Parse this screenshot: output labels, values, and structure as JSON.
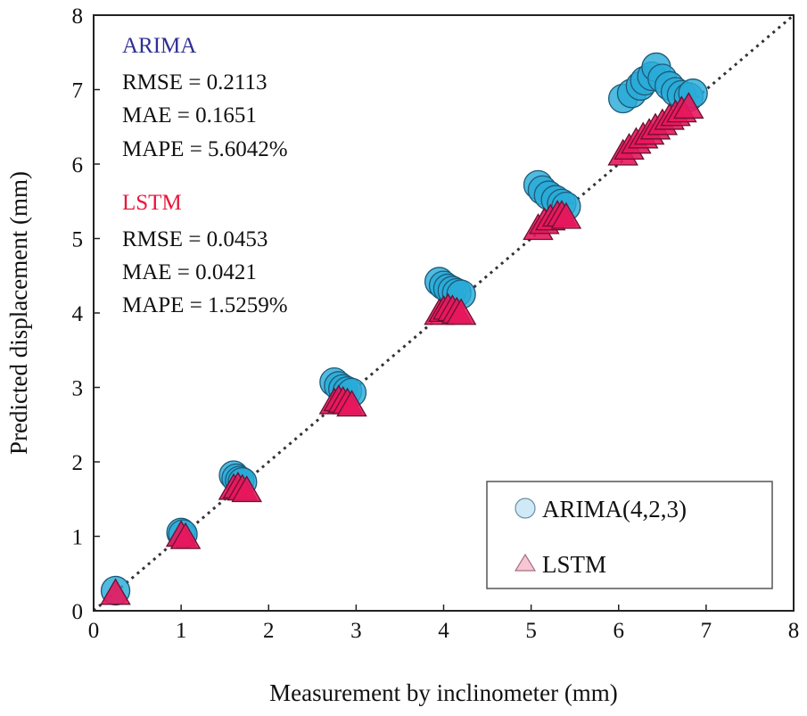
{
  "chart_data": {
    "type": "scatter",
    "xlabel": "Measurement by inclinometer (mm)",
    "ylabel": "Predicted displacement (mm)",
    "xlim": [
      0,
      8
    ],
    "ylim": [
      0,
      8
    ],
    "xticks": [
      0,
      1,
      2,
      3,
      4,
      5,
      6,
      7,
      8
    ],
    "yticks": [
      0,
      1,
      2,
      3,
      4,
      5,
      6,
      7,
      8
    ],
    "reference_line": "y = x",
    "legend_position": "bottom-right",
    "series": [
      {
        "name": "ARIMA(4,2,3)",
        "color": "#29ABD8",
        "marker": "circle",
        "points": [
          [
            0.25,
            0.27
          ],
          [
            1.0,
            1.05
          ],
          [
            1.02,
            1.03
          ],
          [
            1.6,
            1.82
          ],
          [
            1.63,
            1.78
          ],
          [
            1.67,
            1.75
          ],
          [
            1.7,
            1.73
          ],
          [
            2.75,
            3.07
          ],
          [
            2.8,
            3.02
          ],
          [
            2.85,
            2.98
          ],
          [
            2.9,
            2.95
          ],
          [
            2.95,
            2.93
          ],
          [
            3.95,
            4.42
          ],
          [
            4.0,
            4.37
          ],
          [
            4.05,
            4.33
          ],
          [
            4.1,
            4.3
          ],
          [
            4.15,
            4.27
          ],
          [
            4.2,
            4.25
          ],
          [
            5.08,
            5.72
          ],
          [
            5.13,
            5.65
          ],
          [
            5.2,
            5.58
          ],
          [
            5.28,
            5.52
          ],
          [
            5.35,
            5.47
          ],
          [
            5.4,
            5.43
          ],
          [
            6.05,
            6.88
          ],
          [
            6.15,
            6.95
          ],
          [
            6.25,
            7.05
          ],
          [
            6.3,
            7.12
          ],
          [
            6.38,
            7.18
          ],
          [
            6.43,
            7.3
          ],
          [
            6.5,
            7.15
          ],
          [
            6.58,
            7.05
          ],
          [
            6.65,
            6.97
          ],
          [
            6.72,
            6.93
          ],
          [
            6.8,
            6.9
          ],
          [
            6.85,
            6.95
          ]
        ]
      },
      {
        "name": "LSTM",
        "color": "#E8175D",
        "marker": "triangle",
        "points": [
          [
            0.25,
            0.22
          ],
          [
            1.0,
            1.0
          ],
          [
            1.05,
            0.97
          ],
          [
            1.6,
            1.63
          ],
          [
            1.65,
            1.65
          ],
          [
            1.7,
            1.62
          ],
          [
            1.75,
            1.6
          ],
          [
            2.75,
            2.78
          ],
          [
            2.8,
            2.82
          ],
          [
            2.85,
            2.8
          ],
          [
            2.9,
            2.78
          ],
          [
            2.95,
            2.75
          ],
          [
            3.95,
            3.98
          ],
          [
            4.0,
            4.02
          ],
          [
            4.05,
            4.05
          ],
          [
            4.1,
            4.03
          ],
          [
            4.15,
            4.0
          ],
          [
            4.2,
            3.98
          ],
          [
            5.08,
            5.12
          ],
          [
            5.15,
            5.2
          ],
          [
            5.22,
            5.25
          ],
          [
            5.3,
            5.3
          ],
          [
            5.35,
            5.3
          ],
          [
            5.4,
            5.27
          ],
          [
            6.05,
            6.12
          ],
          [
            6.12,
            6.2
          ],
          [
            6.2,
            6.28
          ],
          [
            6.28,
            6.35
          ],
          [
            6.35,
            6.4
          ],
          [
            6.42,
            6.47
          ],
          [
            6.5,
            6.53
          ],
          [
            6.58,
            6.6
          ],
          [
            6.65,
            6.65
          ],
          [
            6.72,
            6.7
          ],
          [
            6.8,
            6.75
          ]
        ]
      }
    ],
    "annotations": {
      "arima": {
        "title": "ARIMA",
        "title_color": "#2E3092",
        "lines": [
          "RMSE = 0.2113",
          "MAE = 0.1651",
          "MAPE = 5.6042%"
        ]
      },
      "lstm": {
        "title": "LSTM",
        "title_color": "#E8173A",
        "lines": [
          "RMSE = 0.0453",
          "MAE = 0.0421",
          "MAPE = 1.5259%"
        ]
      }
    }
  }
}
